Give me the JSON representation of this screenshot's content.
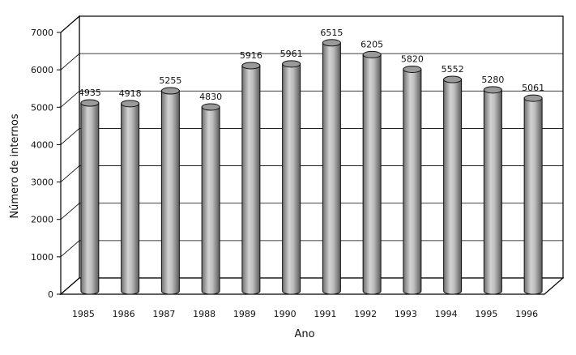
{
  "chart_data": {
    "type": "bar",
    "categories": [
      "1985",
      "1986",
      "1987",
      "1988",
      "1989",
      "1990",
      "1991",
      "1992",
      "1993",
      "1994",
      "1995",
      "1996"
    ],
    "values": [
      4935,
      4918,
      5255,
      4830,
      5916,
      5961,
      6515,
      6205,
      5820,
      5552,
      5280,
      5061
    ],
    "xlabel": "Ano",
    "ylabel": "Número de internos",
    "ylim": [
      0,
      7000
    ],
    "yticks": [
      0,
      1000,
      2000,
      3000,
      4000,
      5000,
      6000,
      7000
    ],
    "grid": true,
    "style": "3d-cylinder",
    "colors": {
      "bar": "#a0a0a0",
      "grid": "#000000",
      "wall": "#ffffff"
    }
  }
}
